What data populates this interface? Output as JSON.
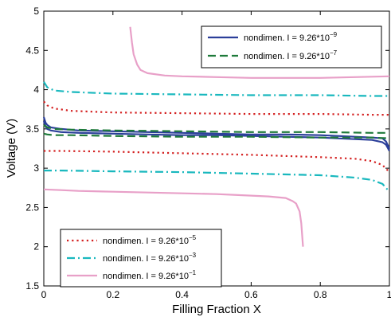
{
  "chart_data": {
    "type": "line",
    "title": "",
    "xlabel": "Filling Fraction X",
    "ylabel": "Voltage (V)",
    "xlim": [
      0,
      1
    ],
    "ylim": [
      1.5,
      5
    ],
    "xticks": [
      0,
      0.2,
      0.4,
      0.6,
      0.8,
      1
    ],
    "xtick_labels": [
      "0",
      "0.2",
      "0.4",
      "0.6",
      "0.8",
      "1"
    ],
    "yticks": [
      1.5,
      2,
      2.5,
      3,
      3.5,
      4,
      4.5,
      5
    ],
    "ytick_labels": [
      "1.5",
      "2",
      "2.5",
      "3",
      "3.5",
      "4",
      "4.5",
      "5"
    ],
    "grid": false,
    "legends": [
      {
        "placement": "top-right",
        "entries": [
          0,
          1
        ]
      },
      {
        "placement": "bottom-left",
        "entries": [
          2,
          3,
          4
        ]
      }
    ],
    "series": [
      {
        "name": "nondimen. I = 9.26*10",
        "exponent": "−9",
        "color": "#2b3f9a",
        "dash": "solid",
        "curves": [
          {
            "x": [
              0,
              0.005,
              0.01,
              0.02,
              0.05,
              0.1,
              0.2,
              0.3,
              0.4,
              0.5,
              0.6,
              0.7,
              0.8,
              0.9,
              0.95,
              0.98,
              0.99,
              1.0
            ],
            "y": [
              3.6,
              3.53,
              3.5,
              3.48,
              3.46,
              3.45,
              3.44,
              3.43,
              3.42,
              3.42,
              3.41,
              3.4,
              3.39,
              3.37,
              3.36,
              3.33,
              3.3,
              3.22
            ]
          },
          {
            "x": [
              0,
              0.005,
              0.01,
              0.02,
              0.05,
              0.1,
              0.2,
              0.3,
              0.4,
              0.5,
              0.6,
              0.7,
              0.8,
              0.9,
              0.95,
              0.98,
              0.99,
              1.0
            ],
            "y": [
              3.65,
              3.58,
              3.55,
              3.52,
              3.5,
              3.48,
              3.47,
              3.46,
              3.45,
              3.44,
              3.43,
              3.43,
              3.42,
              3.4,
              3.39,
              3.38,
              3.34,
              3.25
            ]
          }
        ]
      },
      {
        "name": "nondimen. I = 9.26*10",
        "exponent": "−7",
        "color": "#1e7a3a",
        "dash": "dashed",
        "curves": [
          {
            "x": [
              0,
              0.01,
              0.03,
              0.08,
              0.2,
              0.4,
              0.6,
              0.8,
              0.95,
              1.0
            ],
            "y": [
              3.55,
              3.52,
              3.5,
              3.49,
              3.48,
              3.47,
              3.46,
              3.46,
              3.45,
              3.45
            ]
          },
          {
            "x": [
              0,
              0.01,
              0.03,
              0.08,
              0.2,
              0.4,
              0.6,
              0.8,
              0.95,
              1.0
            ],
            "y": [
              3.44,
              3.43,
              3.42,
              3.42,
              3.41,
              3.4,
              3.4,
              3.39,
              3.39,
              3.38
            ]
          }
        ]
      },
      {
        "name": "nondimen. I = 9.26*10",
        "exponent": "−5",
        "color": "#d42020",
        "dash": "dotted",
        "curves": [
          {
            "x": [
              0,
              0.01,
              0.03,
              0.08,
              0.2,
              0.4,
              0.6,
              0.8,
              0.95,
              1.0
            ],
            "y": [
              3.85,
              3.8,
              3.76,
              3.73,
              3.71,
              3.7,
              3.69,
              3.69,
              3.68,
              3.68
            ]
          },
          {
            "x": [
              0,
              0.05,
              0.2,
              0.4,
              0.6,
              0.8,
              0.9,
              0.95,
              0.98,
              1.0
            ],
            "y": [
              3.22,
              3.22,
              3.21,
              3.19,
              3.17,
              3.14,
              3.12,
              3.09,
              3.04,
              2.95
            ]
          }
        ]
      },
      {
        "name": "nondimen. I = 9.26*10",
        "exponent": "−3",
        "color": "#19b8be",
        "dash": "dashdot",
        "curves": [
          {
            "x": [
              0,
              0.01,
              0.03,
              0.08,
              0.2,
              0.4,
              0.6,
              0.8,
              0.95,
              1.0
            ],
            "y": [
              4.1,
              4.03,
              3.99,
              3.97,
              3.95,
              3.94,
              3.93,
              3.93,
              3.92,
              3.92
            ]
          },
          {
            "x": [
              0,
              0.05,
              0.2,
              0.4,
              0.6,
              0.8,
              0.9,
              0.95,
              0.98,
              1.0
            ],
            "y": [
              2.97,
              2.97,
              2.96,
              2.95,
              2.93,
              2.91,
              2.88,
              2.85,
              2.8,
              2.7
            ]
          }
        ]
      },
      {
        "name": "nondimen. I = 9.26*10",
        "exponent": "−1",
        "color": "#e8a0c8",
        "dash": "solid",
        "curves": [
          {
            "x": [
              0.25,
              0.255,
              0.26,
              0.27,
              0.28,
              0.3,
              0.35,
              0.4,
              0.5,
              0.6,
              0.7,
              0.8,
              0.9,
              1.0
            ],
            "y": [
              4.8,
              4.6,
              4.45,
              4.32,
              4.25,
              4.21,
              4.18,
              4.17,
              4.16,
              4.15,
              4.15,
              4.15,
              4.16,
              4.17
            ]
          },
          {
            "x": [
              0,
              0.05,
              0.1,
              0.2,
              0.3,
              0.4,
              0.5,
              0.6,
              0.65,
              0.7,
              0.72,
              0.73,
              0.74,
              0.745,
              0.75
            ],
            "y": [
              2.73,
              2.72,
              2.71,
              2.7,
              2.69,
              2.68,
              2.67,
              2.65,
              2.64,
              2.62,
              2.58,
              2.55,
              2.45,
              2.3,
              2.0
            ]
          }
        ]
      }
    ]
  }
}
